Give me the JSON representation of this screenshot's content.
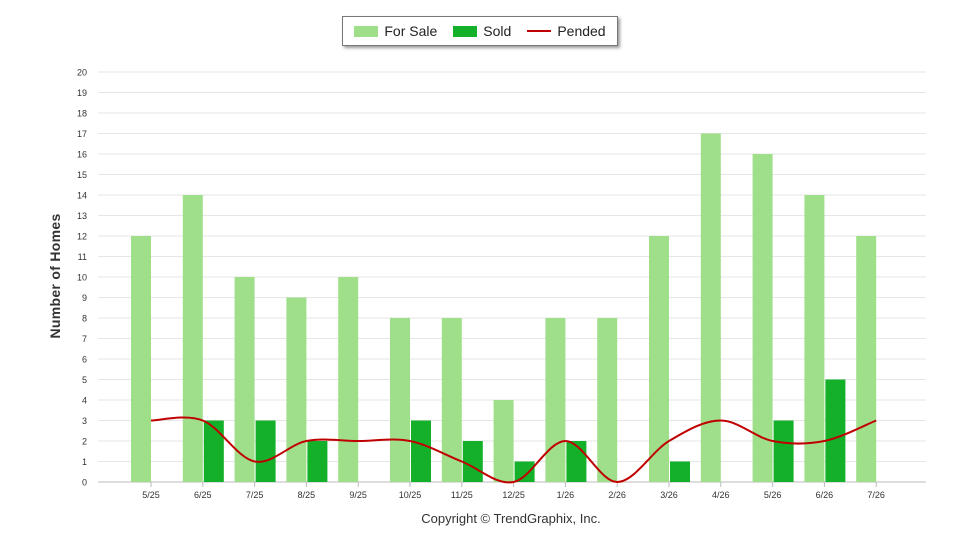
{
  "chart_data": {
    "type": "bar",
    "categories": [
      "5/25",
      "6/25",
      "7/25",
      "8/25",
      "9/25",
      "10/25",
      "11/25",
      "12/25",
      "1/26",
      "2/26",
      "3/26",
      "4/26",
      "5/26",
      "6/26",
      "7/26"
    ],
    "series": [
      {
        "name": "For Sale",
        "kind": "bar",
        "color": "#9fdf8a",
        "values": [
          12,
          14,
          10,
          9,
          10,
          8,
          8,
          4,
          8,
          8,
          12,
          17,
          16,
          14,
          12
        ]
      },
      {
        "name": "Sold",
        "kind": "bar",
        "color": "#14b02a",
        "values": [
          0,
          3,
          3,
          2,
          0,
          3,
          2,
          1,
          2,
          0,
          1,
          0,
          3,
          5,
          0
        ]
      },
      {
        "name": "Pended",
        "kind": "line",
        "color": "#c00000",
        "values": [
          3,
          3,
          1,
          2,
          2,
          2,
          1,
          0,
          2,
          0,
          2,
          3,
          2,
          2,
          3
        ]
      }
    ],
    "ylabel": "Number of Homes",
    "xlabel": "",
    "ylim": [
      0,
      20
    ],
    "yticks": [
      0,
      1,
      2,
      3,
      4,
      5,
      6,
      7,
      8,
      9,
      10,
      11,
      12,
      13,
      14,
      15,
      16,
      17,
      18,
      19,
      20
    ],
    "grid": true,
    "legend_position": "top-center"
  },
  "legend": {
    "for_sale_label": "For Sale",
    "sold_label": "Sold",
    "pended_label": "Pended"
  },
  "footer": {
    "copyright": "Copyright © TrendGraphix, Inc."
  }
}
